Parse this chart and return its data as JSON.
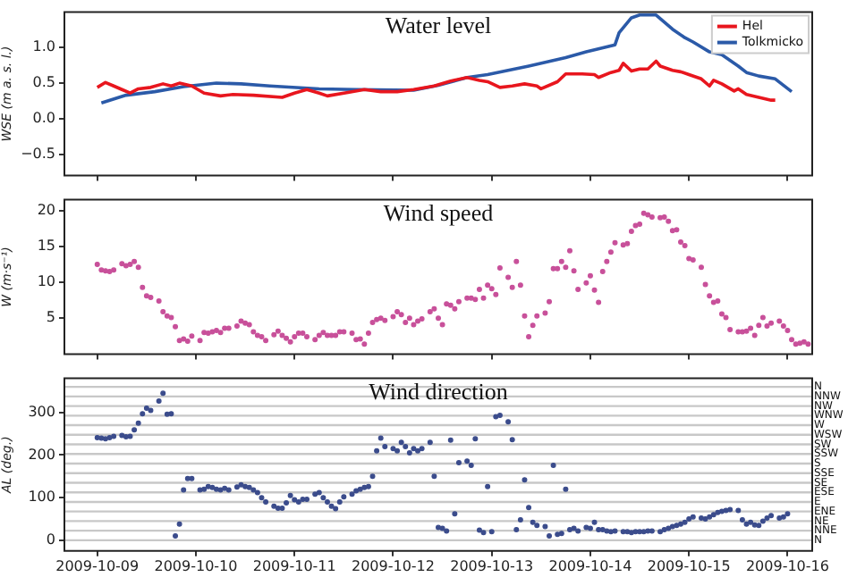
{
  "chart_data": [
    {
      "type": "line",
      "title": "Water level",
      "ylabel": "WSE (m a. s. l.)",
      "xlim": [
        "2009-10-08T16:00",
        "2009-10-16T06:00"
      ],
      "xticks": [
        "2009-10-09",
        "2009-10-10",
        "2009-10-11",
        "2009-10-12",
        "2009-10-13",
        "2009-10-14",
        "2009-10-15",
        "2009-10-16"
      ],
      "ylim": [
        -0.8,
        1.5
      ],
      "yticks": [
        {
          "value": -0.5,
          "label": "−0.5"
        },
        {
          "value": 0,
          "label": "0.0"
        },
        {
          "value": 0.5,
          "label": "0.5"
        },
        {
          "value": 1,
          "label": "1.0"
        }
      ],
      "tick_labels": "y",
      "legend": "top right",
      "line_style": "solid",
      "marker": "none",
      "series": [
        {
          "name": "Hel",
          "color": "#e8161e",
          "x": [
            "2009-10-09T00:00",
            "2009-10-09T02:00",
            "2009-10-09T04:00",
            "2009-10-09T06:00",
            "2009-10-09T08:00",
            "2009-10-09T10:00",
            "2009-10-09T13:00",
            "2009-10-09T16:00",
            "2009-10-09T18:00",
            "2009-10-09T20:00",
            "2009-10-09T23:00",
            "2009-10-10T02:00",
            "2009-10-10T06:00",
            "2009-10-10T09:00",
            "2009-10-10T14:00",
            "2009-10-10T21:00",
            "2009-10-11T00:00",
            "2009-10-11T03:00",
            "2009-10-11T06:00",
            "2009-10-11T08:00",
            "2009-10-11T13:00",
            "2009-10-11T17:00",
            "2009-10-11T21:00",
            "2009-10-12T01:00",
            "2009-10-12T05:00",
            "2009-10-12T10:00",
            "2009-10-12T14:00",
            "2009-10-12T18:00",
            "2009-10-12T21:00",
            "2009-10-12T23:00",
            "2009-10-13T02:00",
            "2009-10-13T05:00",
            "2009-10-13T08:00",
            "2009-10-13T11:00",
            "2009-10-13T12:00",
            "2009-10-13T16:00",
            "2009-10-13T18:00",
            "2009-10-13T22:00",
            "2009-10-14T01:00",
            "2009-10-14T02:00",
            "2009-10-14T05:00",
            "2009-10-14T07:00",
            "2009-10-14T08:00",
            "2009-10-14T10:00",
            "2009-10-14T12:00",
            "2009-10-14T14:00",
            "2009-10-14T16:00",
            "2009-10-14T17:00",
            "2009-10-14T20:00",
            "2009-10-14T22:00",
            "2009-10-15T00:00",
            "2009-10-15T03:00",
            "2009-10-15T05:00",
            "2009-10-15T06:00",
            "2009-10-15T08:00",
            "2009-10-15T11:00",
            "2009-10-15T12:00",
            "2009-10-15T14:00",
            "2009-10-15T17:00",
            "2009-10-15T20:00",
            "2009-10-15T21:00"
          ],
          "values": [
            0.44,
            0.51,
            0.46,
            0.41,
            0.36,
            0.42,
            0.44,
            0.49,
            0.46,
            0.5,
            0.46,
            0.36,
            0.32,
            0.34,
            0.33,
            0.3,
            0.36,
            0.41,
            0.36,
            0.32,
            0.37,
            0.41,
            0.38,
            0.38,
            0.41,
            0.46,
            0.53,
            0.58,
            0.54,
            0.52,
            0.44,
            0.46,
            0.49,
            0.46,
            0.42,
            0.52,
            0.63,
            0.63,
            0.62,
            0.58,
            0.65,
            0.68,
            0.78,
            0.67,
            0.7,
            0.7,
            0.81,
            0.74,
            0.68,
            0.66,
            0.62,
            0.56,
            0.46,
            0.54,
            0.49,
            0.39,
            0.42,
            0.34,
            0.3,
            0.26,
            0.26
          ]
        },
        {
          "name": "Tolkmicko",
          "color": "#2b5aa8",
          "x": [
            "2009-10-09T01:00",
            "2009-10-09T07:00",
            "2009-10-09T14:00",
            "2009-10-09T21:00",
            "2009-10-10T05:00",
            "2009-10-10T11:00",
            "2009-10-10T18:00",
            "2009-10-11T06:00",
            "2009-10-11T15:00",
            "2009-10-12T05:00",
            "2009-10-12T11:00",
            "2009-10-12T18:00",
            "2009-10-12T23:00",
            "2009-10-13T09:00",
            "2009-10-13T18:00",
            "2009-10-13T23:00",
            "2009-10-14T06:00",
            "2009-10-14T07:00",
            "2009-10-14T10:00",
            "2009-10-14T12:00",
            "2009-10-14T16:00",
            "2009-10-14T20:00",
            "2009-10-14T23:00",
            "2009-10-15T01:00",
            "2009-10-15T05:00",
            "2009-10-15T08:00",
            "2009-10-15T12:00",
            "2009-10-15T14:00",
            "2009-10-15T17:00",
            "2009-10-15T21:00",
            "2009-10-16T01:00"
          ],
          "values": [
            0.22,
            0.33,
            0.38,
            0.45,
            0.5,
            0.49,
            0.46,
            0.42,
            0.41,
            0.4,
            0.47,
            0.58,
            0.62,
            0.74,
            0.86,
            0.94,
            1.04,
            1.21,
            1.42,
            1.46,
            1.46,
            1.26,
            1.14,
            1.08,
            0.94,
            0.9,
            0.74,
            0.65,
            0.6,
            0.56,
            0.38
          ]
        }
      ]
    },
    {
      "type": "scatter",
      "title": "Wind speed",
      "ylabel": "W (m·s⁻¹)",
      "xlim": [
        "2009-10-08T16:00",
        "2009-10-16T06:00"
      ],
      "xticks": [
        "2009-10-09",
        "2009-10-10",
        "2009-10-11",
        "2009-10-12",
        "2009-10-13",
        "2009-10-14",
        "2009-10-15",
        "2009-10-16"
      ],
      "ylim": [
        0,
        21.5
      ],
      "yticks": [
        5,
        10,
        15,
        20
      ],
      "tick_labels": "y",
      "marker": "circle",
      "series": [
        {
          "color": "#c8509a",
          "x": [
            "2009-10-09T00:00",
            "2009-10-09T01:00",
            "2009-10-09T02:00",
            "2009-10-09T03:00",
            "2009-10-09T04:00",
            "2009-10-09T06:00",
            "2009-10-09T07:00",
            "2009-10-09T08:00",
            "2009-10-09T09:00",
            "2009-10-09T10:00",
            "2009-10-09T11:00",
            "2009-10-09T12:00",
            "2009-10-09T13:00",
            "2009-10-09T15:00",
            "2009-10-09T16:00",
            "2009-10-09T17:00",
            "2009-10-09T18:00",
            "2009-10-09T19:00",
            "2009-10-09T20:00",
            "2009-10-09T21:00",
            "2009-10-09T22:00",
            "2009-10-09T23:00",
            "2009-10-10T01:00",
            "2009-10-10T02:00",
            "2009-10-10T03:00",
            "2009-10-10T04:00",
            "2009-10-10T05:00",
            "2009-10-10T06:00",
            "2009-10-10T07:00",
            "2009-10-10T08:00",
            "2009-10-10T10:00",
            "2009-10-10T11:00",
            "2009-10-10T12:00",
            "2009-10-10T13:00",
            "2009-10-10T14:00",
            "2009-10-10T15:00",
            "2009-10-10T16:00",
            "2009-10-10T17:00",
            "2009-10-10T19:00",
            "2009-10-10T20:00",
            "2009-10-10T21:00",
            "2009-10-10T22:00",
            "2009-10-10T23:00",
            "2009-10-11T00:00",
            "2009-10-11T01:00",
            "2009-10-11T02:00",
            "2009-10-11T03:00",
            "2009-10-11T05:00",
            "2009-10-11T06:00",
            "2009-10-11T07:00",
            "2009-10-11T08:00",
            "2009-10-11T09:00",
            "2009-10-11T10:00",
            "2009-10-11T11:00",
            "2009-10-11T12:00",
            "2009-10-11T14:00",
            "2009-10-11T15:00",
            "2009-10-11T16:00",
            "2009-10-11T17:00",
            "2009-10-11T18:00",
            "2009-10-11T19:00",
            "2009-10-11T20:00",
            "2009-10-11T21:00",
            "2009-10-11T22:00",
            "2009-10-12T00:00",
            "2009-10-12T01:00",
            "2009-10-12T02:00",
            "2009-10-12T03:00",
            "2009-10-12T04:00",
            "2009-10-12T05:00",
            "2009-10-12T06:00",
            "2009-10-12T07:00",
            "2009-10-12T09:00",
            "2009-10-12T10:00",
            "2009-10-12T11:00",
            "2009-10-12T12:00",
            "2009-10-12T13:00",
            "2009-10-12T14:00",
            "2009-10-12T15:00",
            "2009-10-12T16:00",
            "2009-10-12T18:00",
            "2009-10-12T19:00",
            "2009-10-12T20:00",
            "2009-10-12T21:00",
            "2009-10-12T22:00",
            "2009-10-12T23:00",
            "2009-10-13T00:00",
            "2009-10-13T01:00",
            "2009-10-13T02:00",
            "2009-10-13T04:00",
            "2009-10-13T05:00",
            "2009-10-13T06:00",
            "2009-10-13T07:00",
            "2009-10-13T08:00",
            "2009-10-13T09:00",
            "2009-10-13T10:00",
            "2009-10-13T11:00",
            "2009-10-13T13:00",
            "2009-10-13T14:00",
            "2009-10-13T15:00",
            "2009-10-13T16:00",
            "2009-10-13T17:00",
            "2009-10-13T18:00",
            "2009-10-13T19:00",
            "2009-10-13T20:00",
            "2009-10-13T21:00",
            "2009-10-13T23:00",
            "2009-10-14T00:00",
            "2009-10-14T01:00",
            "2009-10-14T02:00",
            "2009-10-14T03:00",
            "2009-10-14T04:00",
            "2009-10-14T05:00",
            "2009-10-14T06:00",
            "2009-10-14T08:00",
            "2009-10-14T09:00",
            "2009-10-14T10:00",
            "2009-10-14T11:00",
            "2009-10-14T12:00",
            "2009-10-14T13:00",
            "2009-10-14T14:00",
            "2009-10-14T15:00",
            "2009-10-14T17:00",
            "2009-10-14T18:00",
            "2009-10-14T19:00",
            "2009-10-14T20:00",
            "2009-10-14T21:00",
            "2009-10-14T22:00",
            "2009-10-14T23:00",
            "2009-10-15T00:00",
            "2009-10-15T01:00",
            "2009-10-15T03:00",
            "2009-10-15T04:00",
            "2009-10-15T05:00",
            "2009-10-15T06:00",
            "2009-10-15T07:00",
            "2009-10-15T08:00",
            "2009-10-15T09:00",
            "2009-10-15T10:00",
            "2009-10-15T12:00",
            "2009-10-15T13:00",
            "2009-10-15T14:00",
            "2009-10-15T15:00",
            "2009-10-15T16:00",
            "2009-10-15T17:00",
            "2009-10-15T18:00",
            "2009-10-15T19:00",
            "2009-10-15T20:00",
            "2009-10-15T22:00",
            "2009-10-15T23:00",
            "2009-10-16T00:00",
            "2009-10-16T01:00",
            "2009-10-16T02:00",
            "2009-10-16T03:00",
            "2009-10-16T04:00",
            "2009-10-16T05:00"
          ],
          "values": [
            12.5,
            11.7,
            11.6,
            11.5,
            11.7,
            12.6,
            12.3,
            12.5,
            12.9,
            12.1,
            9.3,
            8.1,
            7.9,
            7.4,
            5.9,
            5.3,
            5.1,
            3.8,
            1.9,
            2.1,
            1.8,
            2.5,
            1.9,
            3.0,
            2.9,
            3.1,
            3.3,
            3.0,
            3.6,
            3.6,
            3.9,
            4.6,
            4.3,
            4.1,
            3.1,
            2.6,
            2.4,
            1.9,
            2.7,
            3.2,
            2.6,
            2.2,
            1.7,
            2.4,
            2.9,
            2.9,
            2.4,
            2.0,
            2.6,
            3.0,
            2.6,
            2.6,
            2.6,
            3.1,
            3.1,
            2.9,
            2.0,
            2.1,
            1.4,
            2.9,
            4.4,
            4.8,
            5.0,
            4.7,
            5.2,
            5.9,
            5.5,
            4.4,
            5.0,
            4.1,
            4.6,
            4.9,
            5.9,
            6.3,
            5.0,
            4.1,
            7.0,
            6.8,
            6.3,
            7.3,
            7.8,
            7.8,
            7.6,
            9.0,
            7.8,
            9.6,
            9.1,
            8.3,
            12.0,
            10.7,
            9.3,
            12.9,
            9.6,
            5.3,
            2.4,
            4.0,
            5.3,
            5.7,
            7.3,
            11.9,
            11.9,
            12.9,
            12.1,
            14.4,
            11.6,
            9.0,
            9.9,
            10.9,
            8.9,
            7.2,
            11.5,
            12.9,
            14.2,
            15.5,
            15.2,
            15.4,
            17.1,
            17.9,
            18.1,
            19.6,
            19.4,
            19.1,
            19.0,
            19.1,
            18.5,
            17.2,
            17.3,
            15.6,
            15.1,
            13.3,
            13.1,
            12.1,
            9.7,
            8.1,
            7.2,
            7.4,
            5.6,
            5.1,
            3.4,
            3.1,
            3.1,
            3.2,
            3.6,
            2.6,
            4.0,
            5.1,
            3.9,
            4.3,
            4.6,
            3.9,
            3.3,
            2.0,
            1.4,
            1.5,
            1.7,
            1.4
          ]
        }
      ]
    },
    {
      "type": "scatter",
      "title": "Wind direction",
      "ylabel": "AL (deg.)",
      "xlim": [
        "2009-10-08T16:00",
        "2009-10-16T06:00"
      ],
      "xticks": [
        "2009-10-09",
        "2009-10-10",
        "2009-10-11",
        "2009-10-12",
        "2009-10-13",
        "2009-10-14",
        "2009-10-15",
        "2009-10-16"
      ],
      "ylim": [
        -25,
        380
      ],
      "yticks": [
        0,
        100,
        200,
        300
      ],
      "marker": "circle",
      "ref_lines": [
        {
          "axis": "y",
          "value": 0,
          "label": "N",
          "color": "#c8c8c8"
        },
        {
          "axis": "y",
          "value": 22.5,
          "label": "NNE",
          "color": "#c8c8c8"
        },
        {
          "axis": "y",
          "value": 45,
          "label": "NE",
          "color": "#c8c8c8"
        },
        {
          "axis": "y",
          "value": 67.5,
          "label": "ENE",
          "color": "#c8c8c8"
        },
        {
          "axis": "y",
          "value": 90,
          "label": "E",
          "color": "#c8c8c8"
        },
        {
          "axis": "y",
          "value": 112.5,
          "label": "ESE",
          "color": "#c8c8c8"
        },
        {
          "axis": "y",
          "value": 135,
          "label": "SE",
          "color": "#c8c8c8"
        },
        {
          "axis": "y",
          "value": 157.5,
          "label": "SSE",
          "color": "#c8c8c8"
        },
        {
          "axis": "y",
          "value": 180,
          "label": "S",
          "color": "#c8c8c8"
        },
        {
          "axis": "y",
          "value": 202.5,
          "label": "SSW",
          "color": "#c8c8c8"
        },
        {
          "axis": "y",
          "value": 225,
          "label": "SW",
          "color": "#c8c8c8"
        },
        {
          "axis": "y",
          "value": 247.5,
          "label": "WSW",
          "color": "#c8c8c8"
        },
        {
          "axis": "y",
          "value": 270,
          "label": "W",
          "color": "#c8c8c8"
        },
        {
          "axis": "y",
          "value": 292.5,
          "label": "WNW",
          "color": "#c8c8c8"
        },
        {
          "axis": "y",
          "value": 315,
          "label": "NW",
          "color": "#c8c8c8"
        },
        {
          "axis": "y",
          "value": 337.5,
          "label": "NNW",
          "color": "#c8c8c8"
        },
        {
          "axis": "y",
          "value": 360,
          "label": "N",
          "color": "#c8c8c8"
        }
      ],
      "series": [
        {
          "color": "#3b4c8c",
          "x": [
            "2009-10-09T00:00",
            "2009-10-09T01:00",
            "2009-10-09T02:00",
            "2009-10-09T03:00",
            "2009-10-09T04:00",
            "2009-10-09T06:00",
            "2009-10-09T07:00",
            "2009-10-09T08:00",
            "2009-10-09T09:00",
            "2009-10-09T10:00",
            "2009-10-09T11:00",
            "2009-10-09T12:00",
            "2009-10-09T13:00",
            "2009-10-09T15:00",
            "2009-10-09T16:00",
            "2009-10-09T17:00",
            "2009-10-09T18:00",
            "2009-10-09T19:00",
            "2009-10-09T20:00",
            "2009-10-09T21:00",
            "2009-10-09T22:00",
            "2009-10-09T23:00",
            "2009-10-10T01:00",
            "2009-10-10T02:00",
            "2009-10-10T03:00",
            "2009-10-10T04:00",
            "2009-10-10T05:00",
            "2009-10-10T06:00",
            "2009-10-10T07:00",
            "2009-10-10T08:00",
            "2009-10-10T10:00",
            "2009-10-10T11:00",
            "2009-10-10T12:00",
            "2009-10-10T13:00",
            "2009-10-10T14:00",
            "2009-10-10T15:00",
            "2009-10-10T16:00",
            "2009-10-10T17:00",
            "2009-10-10T19:00",
            "2009-10-10T20:00",
            "2009-10-10T21:00",
            "2009-10-10T22:00",
            "2009-10-10T23:00",
            "2009-10-11T00:00",
            "2009-10-11T01:00",
            "2009-10-11T02:00",
            "2009-10-11T03:00",
            "2009-10-11T05:00",
            "2009-10-11T06:00",
            "2009-10-11T07:00",
            "2009-10-11T08:00",
            "2009-10-11T09:00",
            "2009-10-11T10:00",
            "2009-10-11T11:00",
            "2009-10-11T12:00",
            "2009-10-11T14:00",
            "2009-10-11T15:00",
            "2009-10-11T16:00",
            "2009-10-11T17:00",
            "2009-10-11T18:00",
            "2009-10-11T19:00",
            "2009-10-11T20:00",
            "2009-10-11T21:00",
            "2009-10-11T22:00",
            "2009-10-12T00:00",
            "2009-10-12T01:00",
            "2009-10-12T02:00",
            "2009-10-12T03:00",
            "2009-10-12T04:00",
            "2009-10-12T05:00",
            "2009-10-12T06:00",
            "2009-10-12T07:00",
            "2009-10-12T09:00",
            "2009-10-12T10:00",
            "2009-10-12T11:00",
            "2009-10-12T12:00",
            "2009-10-12T13:00",
            "2009-10-12T14:00",
            "2009-10-12T15:00",
            "2009-10-12T16:00",
            "2009-10-12T18:00",
            "2009-10-12T19:00",
            "2009-10-12T20:00",
            "2009-10-12T21:00",
            "2009-10-12T22:00",
            "2009-10-12T23:00",
            "2009-10-13T00:00",
            "2009-10-13T01:00",
            "2009-10-13T02:00",
            "2009-10-13T04:00",
            "2009-10-13T05:00",
            "2009-10-13T06:00",
            "2009-10-13T07:00",
            "2009-10-13T08:00",
            "2009-10-13T09:00",
            "2009-10-13T10:00",
            "2009-10-13T11:00",
            "2009-10-13T13:00",
            "2009-10-13T14:00",
            "2009-10-13T15:00",
            "2009-10-13T16:00",
            "2009-10-13T17:00",
            "2009-10-13T18:00",
            "2009-10-13T19:00",
            "2009-10-13T20:00",
            "2009-10-13T21:00",
            "2009-10-13T23:00",
            "2009-10-14T00:00",
            "2009-10-14T01:00",
            "2009-10-14T02:00",
            "2009-10-14T03:00",
            "2009-10-14T04:00",
            "2009-10-14T05:00",
            "2009-10-14T06:00",
            "2009-10-14T08:00",
            "2009-10-14T09:00",
            "2009-10-14T10:00",
            "2009-10-14T11:00",
            "2009-10-14T12:00",
            "2009-10-14T13:00",
            "2009-10-14T14:00",
            "2009-10-14T15:00",
            "2009-10-14T17:00",
            "2009-10-14T18:00",
            "2009-10-14T19:00",
            "2009-10-14T20:00",
            "2009-10-14T21:00",
            "2009-10-14T22:00",
            "2009-10-14T23:00",
            "2009-10-15T00:00",
            "2009-10-15T01:00",
            "2009-10-15T03:00",
            "2009-10-15T04:00",
            "2009-10-15T05:00",
            "2009-10-15T06:00",
            "2009-10-15T07:00",
            "2009-10-15T08:00",
            "2009-10-15T09:00",
            "2009-10-15T10:00",
            "2009-10-15T12:00",
            "2009-10-15T13:00",
            "2009-10-15T14:00",
            "2009-10-15T15:00",
            "2009-10-15T16:00",
            "2009-10-15T17:00",
            "2009-10-15T18:00",
            "2009-10-15T19:00",
            "2009-10-15T20:00",
            "2009-10-15T22:00",
            "2009-10-15T23:00",
            "2009-10-16T00:00"
          ],
          "values": [
            241,
            240,
            238,
            241,
            244,
            246,
            243,
            244,
            259,
            275,
            297,
            310,
            305,
            327,
            345,
            296,
            297,
            10,
            38,
            118,
            145,
            145,
            118,
            120,
            126,
            124,
            120,
            118,
            122,
            118,
            125,
            130,
            126,
            124,
            118,
            112,
            100,
            90,
            80,
            75,
            75,
            88,
            105,
            95,
            90,
            96,
            96,
            108,
            112,
            100,
            90,
            80,
            74,
            90,
            102,
            108,
            116,
            120,
            124,
            126,
            150,
            210,
            240,
            220,
            215,
            210,
            230,
            220,
            205,
            215,
            210,
            215,
            230,
            150,
            30,
            28,
            22,
            235,
            62,
            182,
            186,
            176,
            238,
            24,
            18,
            126,
            20,
            290,
            293,
            278,
            236,
            25,
            48,
            142,
            77,
            42,
            35,
            32,
            10,
            176,
            14,
            16,
            120,
            25,
            28,
            22,
            30,
            28,
            42,
            25,
            25,
            22,
            20,
            22,
            20,
            20,
            18,
            20,
            20,
            20,
            22,
            22,
            20,
            25,
            28,
            32,
            35,
            38,
            42,
            50,
            55,
            52,
            50,
            55,
            60,
            65,
            68,
            70,
            72,
            70,
            48,
            38,
            42,
            36,
            35,
            45,
            52,
            58,
            52,
            55,
            62
          ]
        }
      ]
    }
  ]
}
